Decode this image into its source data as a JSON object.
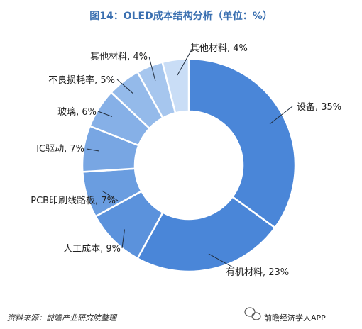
{
  "chart_data": {
    "type": "pie",
    "title": "图14：OLED成本结构分析（单位：%）",
    "categories": [
      "设备",
      "有机材料",
      "人工成本",
      "PCB印刷线路板",
      "IC驱动",
      "玻璃",
      "不良损耗率",
      "其他材料",
      "其他材料"
    ],
    "values": [
      35,
      23,
      9,
      7,
      7,
      6,
      5,
      4,
      4
    ],
    "labels": [
      "设备, 35%",
      "有机材料, 23%",
      "人工成本, 9%",
      "PCB印刷线路板, 7%",
      "IC驱动, 7%",
      "玻璃, 6%",
      "不良损耗率, 5%",
      "其他材料, 4%",
      "其他材料, 4%"
    ],
    "colors": [
      "#4a86d8",
      "#4a86d8",
      "#5b92dc",
      "#6a9de0",
      "#78a6e3",
      "#86b0e7",
      "#94baea",
      "#a6c6ee",
      "#c9ddf6"
    ],
    "donut": true
  },
  "source": "资料来源：前瞻产业研究院整理",
  "watermark": "前瞻经济学人APP"
}
